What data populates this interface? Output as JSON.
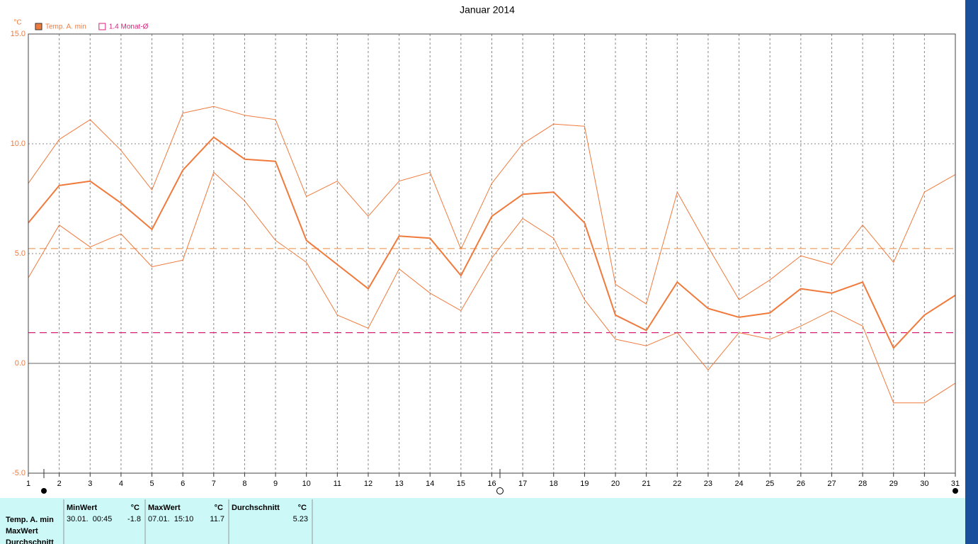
{
  "chart_data": {
    "type": "line",
    "title": "Januar 2014",
    "y_unit": "°C",
    "x": [
      1,
      2,
      3,
      4,
      5,
      6,
      7,
      8,
      9,
      10,
      11,
      12,
      13,
      14,
      15,
      16,
      17,
      18,
      19,
      20,
      21,
      22,
      23,
      24,
      25,
      26,
      27,
      28,
      29,
      30,
      31
    ],
    "xlim": [
      1,
      31
    ],
    "xticks": [
      1,
      2,
      3,
      4,
      5,
      6,
      7,
      8,
      9,
      10,
      11,
      12,
      13,
      14,
      15,
      16,
      17,
      18,
      19,
      20,
      21,
      22,
      23,
      24,
      25,
      26,
      27,
      28,
      29,
      30,
      31
    ],
    "ylim": [
      -5,
      15
    ],
    "yticks": [
      {
        "value": -5,
        "label": "-5.0"
      },
      {
        "value": 0,
        "label": "0.0"
      },
      {
        "value": 5,
        "label": "5.0"
      },
      {
        "value": 10,
        "label": "10.0"
      },
      {
        "value": 15,
        "label": "15.0"
      }
    ],
    "grid": true,
    "series": [
      {
        "name": "Temp. A. min",
        "color": "#f07a3c",
        "width": 2,
        "values": [
          6.4,
          8.1,
          8.3,
          7.3,
          6.1,
          8.8,
          10.3,
          9.3,
          9.2,
          5.6,
          4.5,
          3.4,
          5.8,
          5.7,
          4.0,
          6.7,
          7.7,
          7.8,
          6.4,
          2.2,
          1.5,
          3.7,
          2.5,
          2.1,
          2.3,
          3.4,
          3.2,
          3.7,
          0.7,
          2.2,
          3.1
        ]
      },
      {
        "color": "#f07a3c",
        "width": 1,
        "values": [
          8.2,
          10.2,
          11.1,
          9.7,
          7.9,
          11.4,
          11.7,
          11.3,
          11.1,
          7.6,
          8.3,
          6.7,
          8.3,
          8.7,
          5.2,
          8.2,
          10.0,
          10.9,
          10.8,
          3.6,
          2.7,
          7.8,
          5.3,
          2.9,
          3.8,
          4.9,
          4.5,
          6.3,
          4.6,
          7.8,
          8.6
        ]
      },
      {
        "color": "#f07a3c",
        "width": 1,
        "values": [
          3.9,
          6.3,
          5.3,
          5.9,
          4.4,
          4.7,
          8.7,
          7.4,
          5.6,
          4.6,
          2.2,
          1.6,
          4.3,
          3.2,
          2.4,
          4.8,
          6.6,
          5.7,
          2.9,
          1.1,
          0.8,
          1.4,
          -0.3,
          1.4,
          1.1,
          1.7,
          2.4,
          1.7,
          -1.8,
          -1.8,
          -0.9
        ]
      }
    ],
    "reference_lines": [
      {
        "value": 5.23,
        "color": "#f0a060"
      },
      {
        "value": 1.4,
        "label": "1.4 Monat-Ø",
        "color": "#d8207a"
      }
    ]
  },
  "table": {
    "columns": [
      {
        "name": "MinWert",
        "unit": "°C"
      },
      {
        "name": "MaxWert",
        "unit": "°C"
      },
      {
        "name": "Durchschnitt",
        "unit": "°C"
      }
    ],
    "row_labels": [
      "Temp. A. min",
      "MaxWert",
      "Durchschnitt"
    ],
    "cells": [
      {
        "time": "30.01.  00:45",
        "value": -1.8
      },
      {
        "time": "07.01.  15:10",
        "value": 11.7
      },
      {
        "value": 5.23
      }
    ]
  }
}
